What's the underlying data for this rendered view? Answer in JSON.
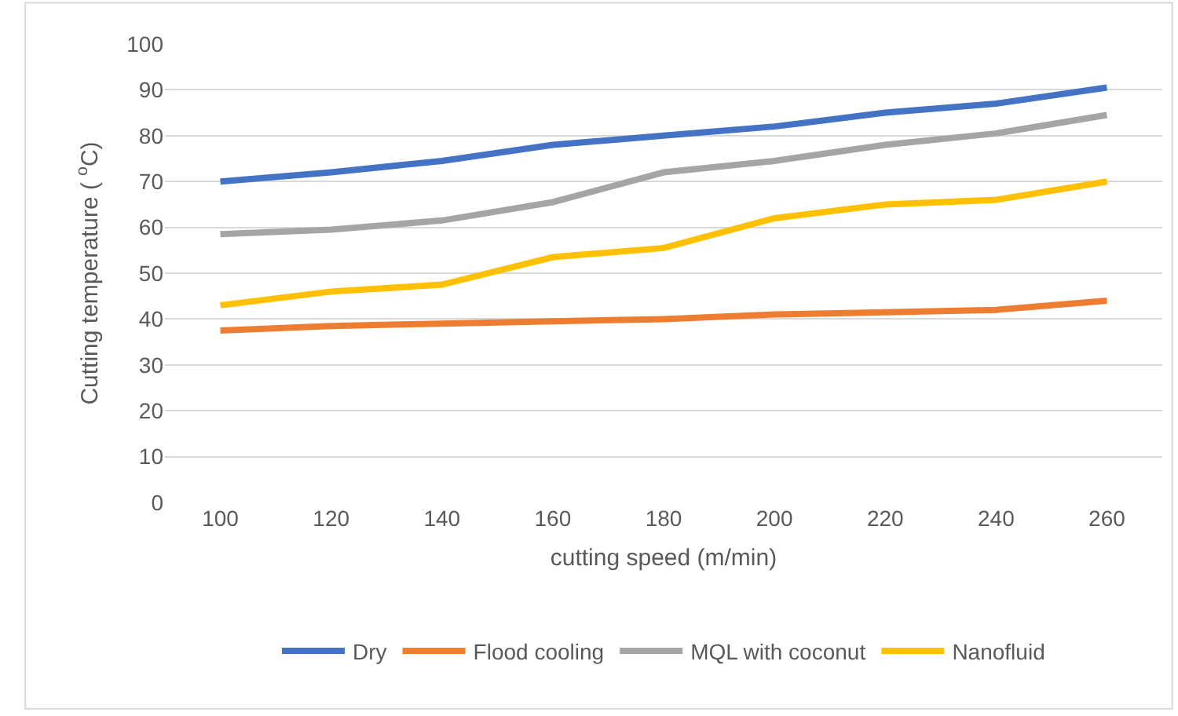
{
  "chart_data": {
    "type": "line",
    "xlabel": "cutting speed (m/min)",
    "ylabel": "Cutting temperature ( $^{o}$C)",
    "categories": [
      "100",
      "120",
      "140",
      "160",
      "180",
      "200",
      "220",
      "240",
      "260"
    ],
    "series": [
      {
        "name": "Dry",
        "color": "#4472c4",
        "values": [
          70,
          72,
          74.5,
          78,
          80,
          82,
          85,
          87,
          90.5
        ]
      },
      {
        "name": "Flood cooling",
        "color": "#ed7d31",
        "values": [
          37.5,
          38.5,
          39,
          39.5,
          40,
          41,
          41.5,
          42,
          44
        ]
      },
      {
        "name": "MQL with coconut",
        "color": "#a5a5a5",
        "values": [
          58.5,
          59.5,
          61.5,
          65.5,
          72,
          74.5,
          78,
          80.5,
          84.5
        ]
      },
      {
        "name": "Nanofluid",
        "color": "#ffc000",
        "values": [
          43,
          46,
          47.5,
          53.5,
          55.5,
          62,
          65,
          66,
          70
        ]
      }
    ],
    "ylim": [
      0,
      100
    ],
    "yticks": [
      0,
      10,
      20,
      30,
      40,
      50,
      60,
      70,
      80,
      90,
      100
    ],
    "grid": "y",
    "legend": "bottom",
    "marker": "none",
    "line_style": "solid"
  }
}
